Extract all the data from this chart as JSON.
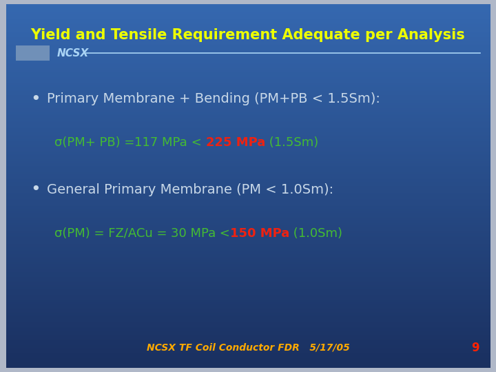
{
  "title": "Yield and Tensile Requirement Adequate per Analysis",
  "title_color": "#EEFF00",
  "title_fontsize": 15,
  "bg_color_top": "#3568b0",
  "bg_color_bottom": "#1a3060",
  "outer_border_color": "#b0b8c8",
  "ncsx_label": "NCSX",
  "ncsx_color": "#aad4f5",
  "ncsx_rect_color": "#7090b8",
  "bullet1_text": "Primary Membrane + Bending (PM+PB < 1.5Sm):",
  "bullet1_color": "#c8d8e8",
  "bullet1_fontsize": 14,
  "line1_part1": "σ(PM+ PB) =",
  "line1_part2": "117 MPa",
  "line1_part3": " < ",
  "line1_part4": "225 MPa",
  "line1_part5": " (1.5Sm)",
  "line1_color1": "#44bb33",
  "line1_color2": "#44bb33",
  "line1_color3": "#44bb33",
  "line1_color4": "#ee2211",
  "line1_color5": "#44bb33",
  "line1_fontsize": 13,
  "bullet2_text": "General Primary Membrane (PM < 1.0Sm):",
  "bullet2_color": "#c8d8e8",
  "bullet2_fontsize": 14,
  "line2_part1": "σ(PM) = FZ/ACu = ",
  "line2_part2": "30 MPa",
  "line2_part3": " <",
  "line2_part4": "150 MPa",
  "line2_part5": " (1.0Sm)",
  "line2_color1": "#44bb33",
  "line2_color2": "#44bb33",
  "line2_color3": "#44bb33",
  "line2_color4": "#ee2211",
  "line2_color5": "#44bb33",
  "line2_fontsize": 13,
  "footer_text1": "NCSX TF Coil Conductor FDR   5/17/05",
  "footer_color1": "#ffaa00",
  "footer_text2": "9",
  "footer_color2": "#ff2200",
  "footer_fontsize": 10
}
